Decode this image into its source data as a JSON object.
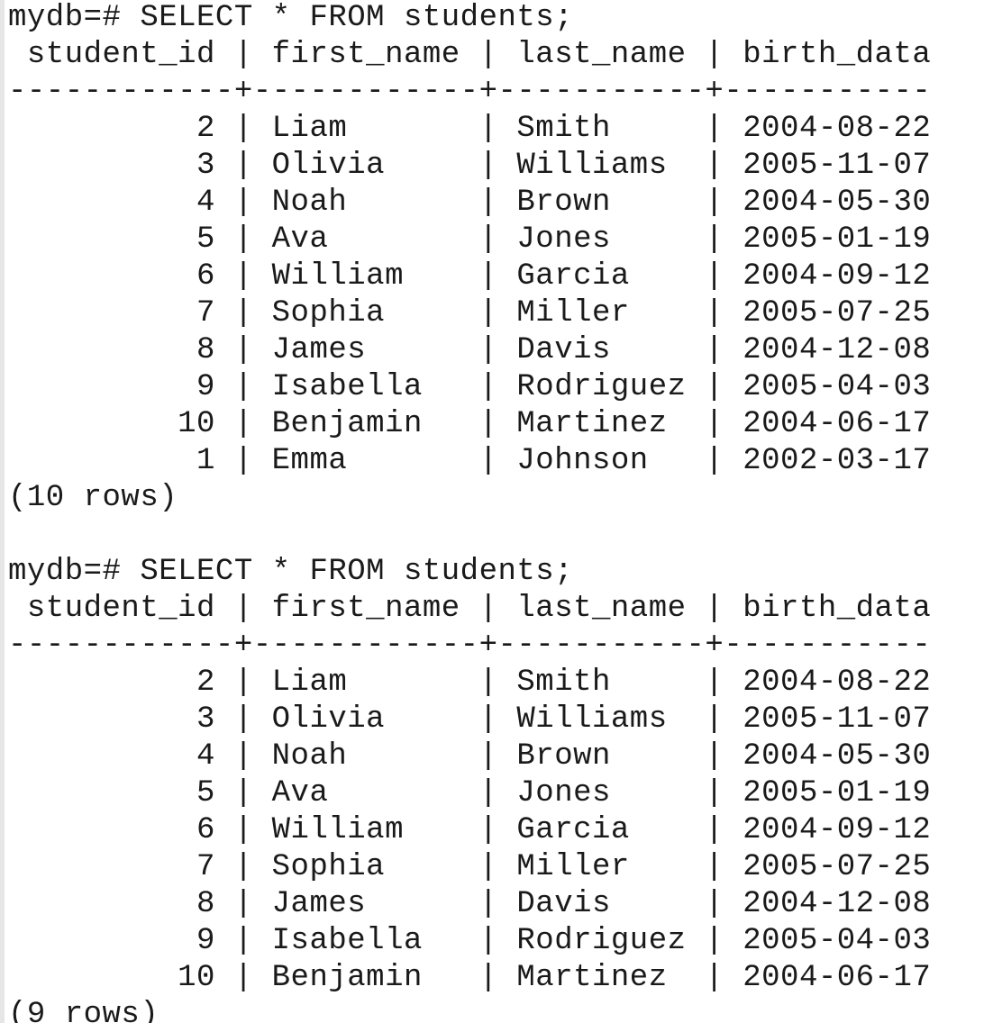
{
  "blocks": [
    {
      "prompt": "mydb=# SELECT * FROM students;",
      "header": " student_id | first_name | last_name | birth_data ",
      "separator": "------------+------------+-----------+-----------",
      "rows": [
        "          2 | Liam       | Smith     | 2004-08-22",
        "          3 | Olivia     | Williams  | 2005-11-07",
        "          4 | Noah       | Brown     | 2004-05-30",
        "          5 | Ava        | Jones     | 2005-01-19",
        "          6 | William    | Garcia    | 2004-09-12",
        "          7 | Sophia     | Miller    | 2005-07-25",
        "          8 | James      | Davis     | 2004-12-08",
        "          9 | Isabella   | Rodriguez | 2005-04-03",
        "         10 | Benjamin   | Martinez  | 2004-06-17",
        "          1 | Emma       | Johnson   | 2002-03-17"
      ],
      "footer": "(10 rows)"
    },
    {
      "prompt": "mydb=# SELECT * FROM students;",
      "header": " student_id | first_name | last_name | birth_data ",
      "separator": "------------+------------+-----------+-----------",
      "rows": [
        "          2 | Liam       | Smith     | 2004-08-22",
        "          3 | Olivia     | Williams  | 2005-11-07",
        "          4 | Noah       | Brown     | 2004-05-30",
        "          5 | Ava        | Jones     | 2005-01-19",
        "          6 | William    | Garcia    | 2004-09-12",
        "          7 | Sophia     | Miller    | 2005-07-25",
        "          8 | James      | Davis     | 2004-12-08",
        "          9 | Isabella   | Rodriguez | 2005-04-03",
        "         10 | Benjamin   | Martinez  | 2004-06-17"
      ],
      "footer": "(9 rows)"
    }
  ]
}
